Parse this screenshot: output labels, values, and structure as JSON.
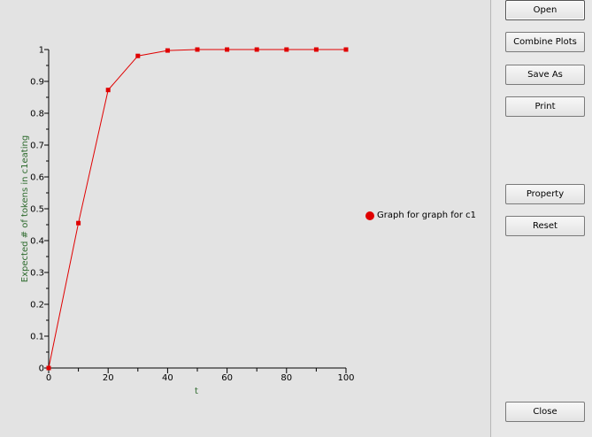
{
  "buttons": {
    "open": "Open",
    "combine_plots": "Combine Plots",
    "save_as": "Save As",
    "print": "Print",
    "property": "Property",
    "reset": "Reset",
    "close": "Close"
  },
  "legend": {
    "label": "Graph for graph for c1",
    "color": "#e00000"
  },
  "chart_data": {
    "type": "line",
    "xlabel": "t",
    "ylabel": "Expected # of tokens in c1eating",
    "xlim": [
      0,
      100
    ],
    "ylim": [
      0,
      1
    ],
    "x_ticks": [
      0,
      20,
      40,
      60,
      80,
      100
    ],
    "y_ticks": [
      0,
      0.1,
      0.2,
      0.3,
      0.4,
      0.5,
      0.6,
      0.7,
      0.8,
      0.9,
      1
    ],
    "grid": false,
    "line_color": "#e00000",
    "series": [
      {
        "name": "Graph for graph for c1",
        "x": [
          0,
          10,
          20,
          30,
          40,
          50,
          60,
          70,
          80,
          90,
          100
        ],
        "y": [
          0,
          0.455,
          0.873,
          0.98,
          0.997,
          1.0,
          1.0,
          1.0,
          1.0,
          1.0,
          1.0
        ]
      }
    ]
  }
}
